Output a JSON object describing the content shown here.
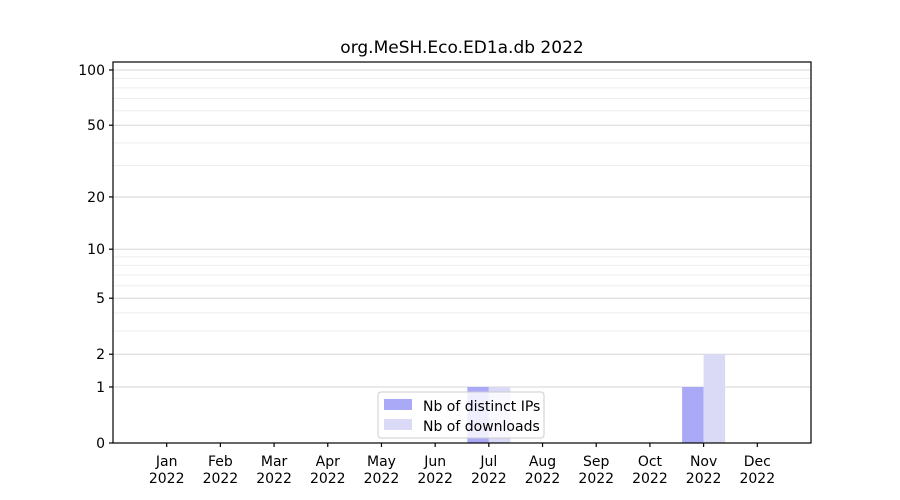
{
  "chart_data": {
    "type": "bar",
    "title": "org.MeSH.Eco.ED1a.db 2022",
    "categories": [
      "Jan",
      "Feb",
      "Mar",
      "Apr",
      "May",
      "Jun",
      "Jul",
      "Aug",
      "Sep",
      "Oct",
      "Nov",
      "Dec"
    ],
    "year_label": "2022",
    "series": [
      {
        "name": "Nb of distinct IPs",
        "color": "#a9a9f7",
        "values": [
          0,
          0,
          0,
          0,
          0,
          0,
          1,
          0,
          0,
          0,
          1,
          0
        ]
      },
      {
        "name": "Nb of downloads",
        "color": "#dadaf7",
        "values": [
          0,
          0,
          0,
          0,
          0,
          0,
          1,
          0,
          0,
          0,
          2,
          0
        ]
      }
    ],
    "xlabel": "",
    "ylabel": "",
    "yscale": "log1p",
    "yticks": [
      0,
      1,
      2,
      5,
      10,
      20,
      50,
      100
    ],
    "minor_yticks": [
      3,
      4,
      6,
      7,
      8,
      9,
      30,
      40,
      60,
      70,
      80,
      90
    ],
    "ylim": [
      0,
      110
    ],
    "grid": true,
    "legend_position": "lower center, inside plot"
  },
  "colors": {
    "background": "#ffffff",
    "axis": "#000000",
    "major_grid": "#d6d6d6",
    "minor_grid": "#eeeeee",
    "legend_border": "#cccccc",
    "legend_background": "rgba(255,255,255,0.8)"
  }
}
